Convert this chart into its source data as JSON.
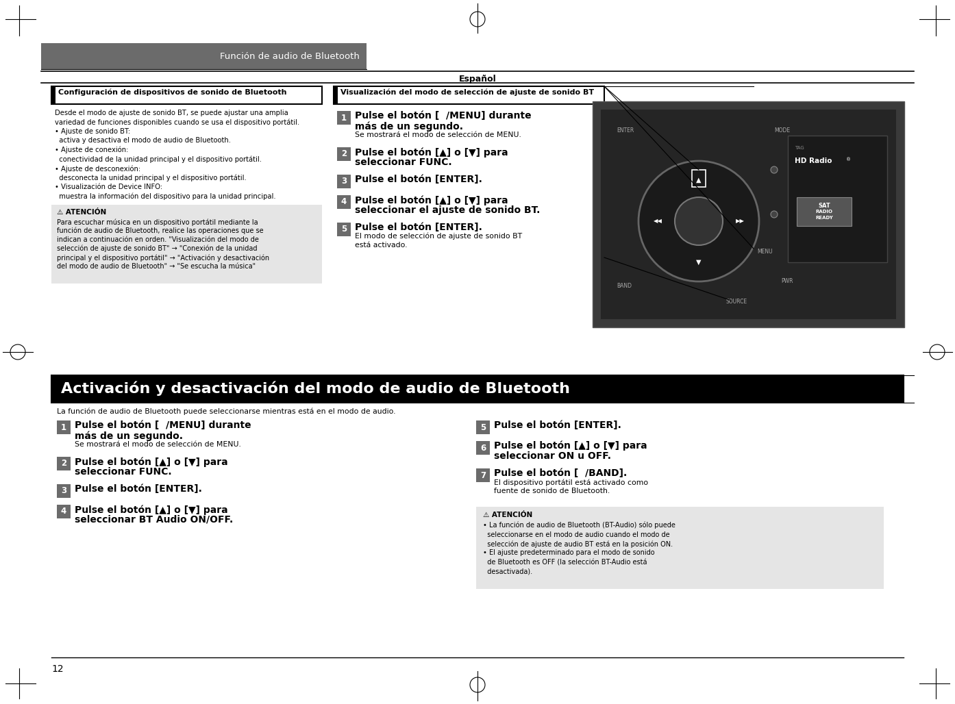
{
  "page_bg": "#ffffff",
  "header_bg": "#6b6b6b",
  "header_text": "Función de audio de Bluetooth",
  "header_text_color": "#ffffff",
  "subheader_text": "Español",
  "page_number": "12",
  "section1_title": "Configuración de dispositivos de sonido de Bluetooth",
  "section2_title": "Visualización del modo de selección de ajuste de sonido BT",
  "section3_title": "Activación y desactivación del modo de audio de Bluetooth",
  "section1_body": [
    "Desde el modo de ajuste de sonido BT, se puede ajustar una amplia",
    "variedad de funciones disponibles cuando se usa el dispositivo portátil.",
    "• Ajuste de sonido BT:",
    "  activa y desactiva el modo de audio de Bluetooth.",
    "• Ajuste de conexión:",
    "  conectividad de la unidad principal y el dispositivo portátil.",
    "• Ajuste de desconexión:",
    "  desconecta la unidad principal y el dispositivo portátil.",
    "• Visualización de Device INFO:",
    "  muestra la información del dispositivo para la unidad principal."
  ],
  "caution1_title": "⚠ ATENCIÓN",
  "caution1_body": [
    "Para escuchar música en un dispositivo portátil mediante la",
    "función de audio de Bluetooth, realice las operaciones que se",
    "indican a continuación en orden. \"Visualización del modo de",
    "selección de ajuste de sonido BT\" → \"Conexión de la unidad",
    "principal y el dispositivo portátil\" → \"Activación y desactivación",
    "del modo de audio de Bluetooth\" → \"Se escucha la música\""
  ],
  "section2_steps": [
    {
      "num": "1",
      "bold": "Pulse el botón [  /MENU] durante\nmás de un segundo.",
      "normal": "Se mostrará el modo de selección de MENU."
    },
    {
      "num": "2",
      "bold": "Pulse el botón [▲] o [▼] para\nseleccionar FUNC.",
      "normal": ""
    },
    {
      "num": "3",
      "bold": "Pulse el botón [ENTER].",
      "normal": ""
    },
    {
      "num": "4",
      "bold": "Pulse el botón [▲] o [▼] para\nseleccionar el ajuste de sonido BT.",
      "normal": ""
    },
    {
      "num": "5",
      "bold": "Pulse el botón [ENTER].",
      "normal": "El modo de selección de ajuste de sonido BT\nestá activado."
    }
  ],
  "section3_subtitle": "La función de audio de Bluetooth puede seleccionarse mientras está en el modo de audio.",
  "section3_left_steps": [
    {
      "num": "1",
      "bold": "Pulse el botón [  /MENU] durante\nmás de un segundo.",
      "normal": "Se mostrará el modo de selección de MENU."
    },
    {
      "num": "2",
      "bold": "Pulse el botón [▲] o [▼] para\nseleccionar FUNC.",
      "normal": ""
    },
    {
      "num": "3",
      "bold": "Pulse el botón [ENTER].",
      "normal": ""
    },
    {
      "num": "4",
      "bold": "Pulse el botón [▲] o [▼] para\nseleccionar BT Audio ON/OFF.",
      "normal": ""
    }
  ],
  "section3_right_steps": [
    {
      "num": "5",
      "bold": "Pulse el botón [ENTER].",
      "normal": ""
    },
    {
      "num": "6",
      "bold": "Pulse el botón [▲] o [▼] para\nseleccionar ON u OFF.",
      "normal": ""
    },
    {
      "num": "7",
      "bold": "Pulse el botón [  /BAND].",
      "normal": "El dispositivo portátil está activado como\nfuente de sonido de Bluetooth."
    }
  ],
  "caution2_title": "⚠ ATENCIÓN",
  "caution2_body": [
    "• La función de audio de Bluetooth (BT-Audio) sólo puede",
    "  seleccionarse en el modo de audio cuando el modo de",
    "  selección de ajuste de audio BT está en la posición ON.",
    "• El ajuste predeterminado para el modo de sonido",
    "  de Bluetooth es OFF (la selección BT-Audio está",
    "  desactivada)."
  ],
  "step_num_bg": "#6b6b6b",
  "step_num_color": "#ffffff",
  "caution_bg": "#e5e5e5",
  "section3_title_bg": "#000000",
  "section3_title_color": "#ffffff",
  "line_color": "#000000"
}
